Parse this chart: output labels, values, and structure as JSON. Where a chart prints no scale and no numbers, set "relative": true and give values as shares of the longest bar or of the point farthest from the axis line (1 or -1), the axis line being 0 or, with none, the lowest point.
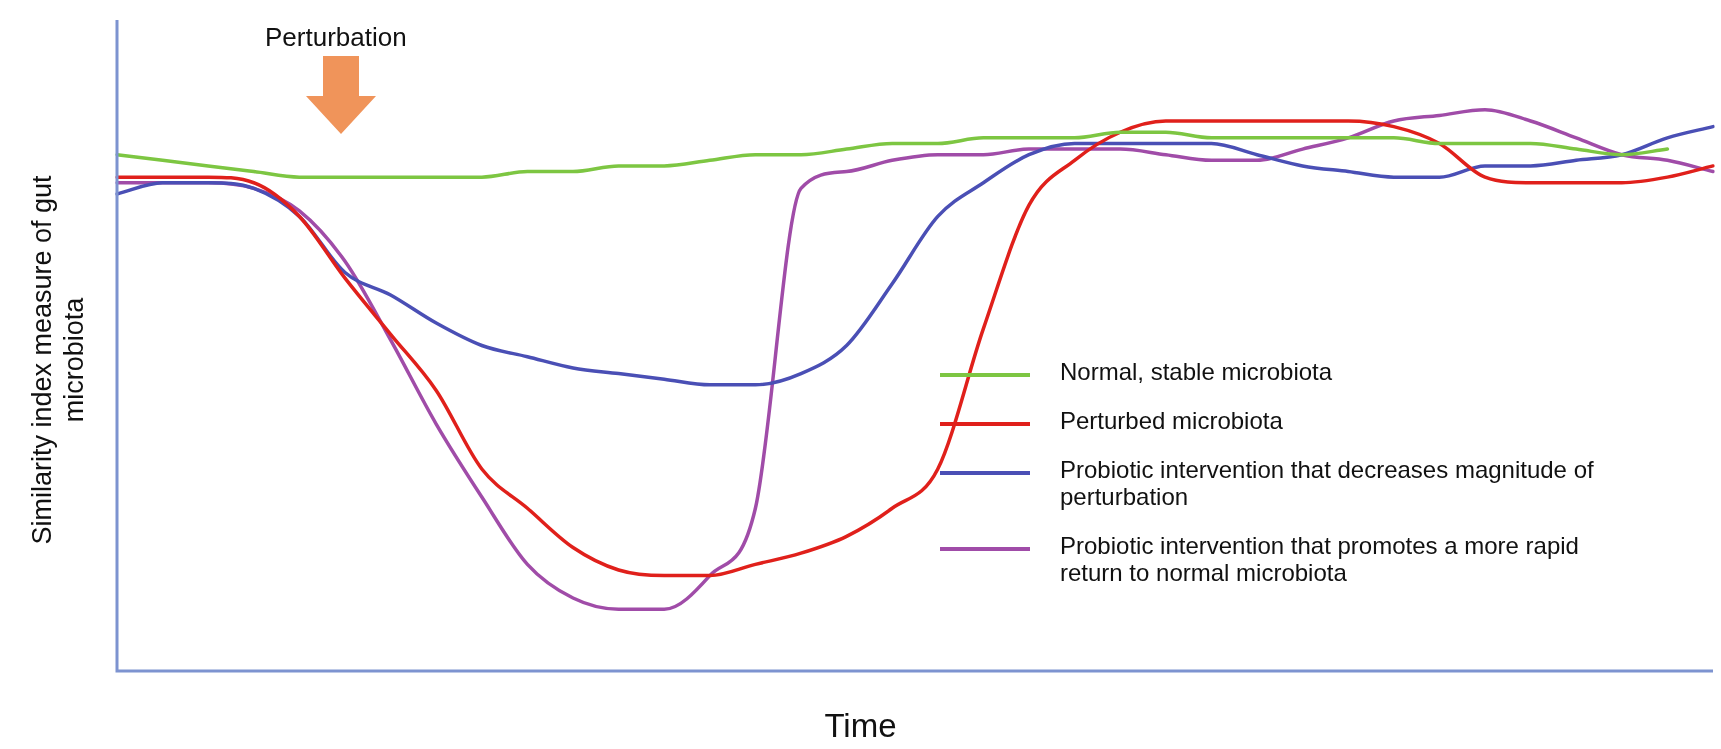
{
  "chart_data": {
    "type": "line",
    "relative": true,
    "xlabel": "Time",
    "ylabel": "Similarity index measure of gut microbiota",
    "legend": "right",
    "marker": "none",
    "line_style": "solid",
    "annotations": [
      "Perturbation"
    ],
    "categories": [
      null,
      null,
      null,
      null,
      null,
      null,
      null,
      null,
      null,
      null,
      null,
      null,
      null,
      null,
      null,
      null,
      null,
      null,
      null,
      null,
      null,
      null,
      null,
      null,
      null,
      null,
      null,
      null,
      null,
      null,
      null,
      null,
      null,
      null,
      null,
      null
    ],
    "series": [
      {
        "name": "Normal, stable microbiota",
        "color": "#7dc642",
        "values": [
          0.92,
          0.91,
          0.9,
          0.89,
          0.88,
          0.88,
          0.88,
          0.88,
          0.88,
          0.89,
          0.89,
          0.9,
          0.9,
          0.91,
          0.92,
          0.92,
          0.93,
          0.94,
          0.94,
          0.95,
          0.95,
          0.95,
          0.96,
          0.96,
          0.95,
          0.95,
          0.95,
          0.95,
          0.95,
          0.94,
          0.94,
          0.94,
          0.93,
          0.92,
          0.93,
          null
        ]
      },
      {
        "name": "Perturbed microbiota",
        "color": "#e0201b",
        "values": [
          0.88,
          0.88,
          0.88,
          0.87,
          0.81,
          0.7,
          0.6,
          0.5,
          0.36,
          0.29,
          0.22,
          0.18,
          0.17,
          0.17,
          0.19,
          0.21,
          0.24,
          0.29,
          0.36,
          0.61,
          0.83,
          0.91,
          0.96,
          0.98,
          0.98,
          0.98,
          0.98,
          0.98,
          0.97,
          0.94,
          0.88,
          0.87,
          0.87,
          0.87,
          0.88,
          0.9
        ]
      },
      {
        "name": "Probiotic intervention that decreases magnitude of perturbation",
        "color": "#4a4fb5",
        "values": [
          0.85,
          0.87,
          0.87,
          0.86,
          0.81,
          0.71,
          0.67,
          0.62,
          0.58,
          0.56,
          0.54,
          0.53,
          0.52,
          0.51,
          0.51,
          0.53,
          0.58,
          0.69,
          0.81,
          0.87,
          0.92,
          0.94,
          0.94,
          0.94,
          0.94,
          0.92,
          0.9,
          0.89,
          0.88,
          0.88,
          0.9,
          0.9,
          0.91,
          0.92,
          0.95,
          0.97
        ]
      },
      {
        "name": "Probiotic intervention that promotes a more rapid return to normal microbiota",
        "color": "#a04ca8",
        "values": [
          0.87,
          0.87,
          0.87,
          0.86,
          0.82,
          0.73,
          0.59,
          0.44,
          0.31,
          0.19,
          0.13,
          0.11,
          0.11,
          0.17,
          0.29,
          0.86,
          0.89,
          0.91,
          0.92,
          0.92,
          0.93,
          0.93,
          0.93,
          0.92,
          0.91,
          0.91,
          0.93,
          0.95,
          0.98,
          0.99,
          1,
          0.98,
          0.95,
          0.92,
          0.91,
          0.89
        ]
      }
    ]
  }
}
